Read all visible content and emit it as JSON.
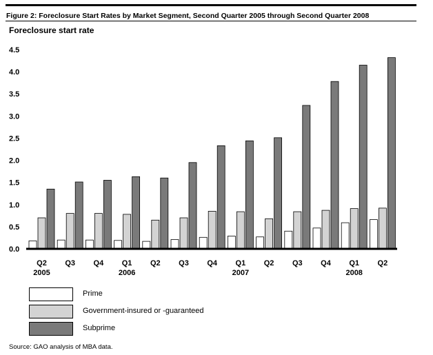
{
  "figure_title": "Figure 2: Foreclosure Start Rates by Market Segment, Second Quarter 2005 through Second Quarter 2008",
  "source": "Source: GAO analysis of MBA data.",
  "colors": {
    "prime": "#ffffff",
    "government": "#d3d3d3",
    "subprime": "#7a7a7a"
  },
  "chart_data": {
    "type": "bar",
    "ylabel": "Foreclosure start rate",
    "ylim": [
      0,
      4.5
    ],
    "yticks": [
      "0.0",
      "0.5",
      "1.0",
      "1.5",
      "2.0",
      "2.5",
      "3.0",
      "3.5",
      "4.0",
      "4.5"
    ],
    "grid": false,
    "legend_position": "bottom-left",
    "categories": [
      [
        "Q2",
        "2005"
      ],
      [
        "Q3",
        ""
      ],
      [
        "Q4",
        ""
      ],
      [
        "Q1",
        "2006"
      ],
      [
        "Q2",
        ""
      ],
      [
        "Q3",
        ""
      ],
      [
        "Q4",
        ""
      ],
      [
        "Q1",
        "2007"
      ],
      [
        "Q2",
        ""
      ],
      [
        "Q3",
        ""
      ],
      [
        "Q4",
        ""
      ],
      [
        "Q1",
        "2008"
      ],
      [
        "Q2",
        ""
      ]
    ],
    "series": [
      {
        "name": "Prime",
        "values": [
          0.18,
          0.2,
          0.2,
          0.19,
          0.17,
          0.21,
          0.26,
          0.29,
          0.27,
          0.4,
          0.47,
          0.59,
          0.66
        ]
      },
      {
        "name": "Government-insured or -guaranteed",
        "values": [
          0.7,
          0.8,
          0.8,
          0.78,
          0.65,
          0.7,
          0.85,
          0.84,
          0.68,
          0.84,
          0.87,
          0.91,
          0.92
        ]
      },
      {
        "name": "Subprime",
        "values": [
          1.35,
          1.51,
          1.55,
          1.63,
          1.6,
          1.95,
          2.33,
          2.44,
          2.51,
          3.24,
          3.78,
          4.15,
          4.32
        ]
      }
    ]
  }
}
